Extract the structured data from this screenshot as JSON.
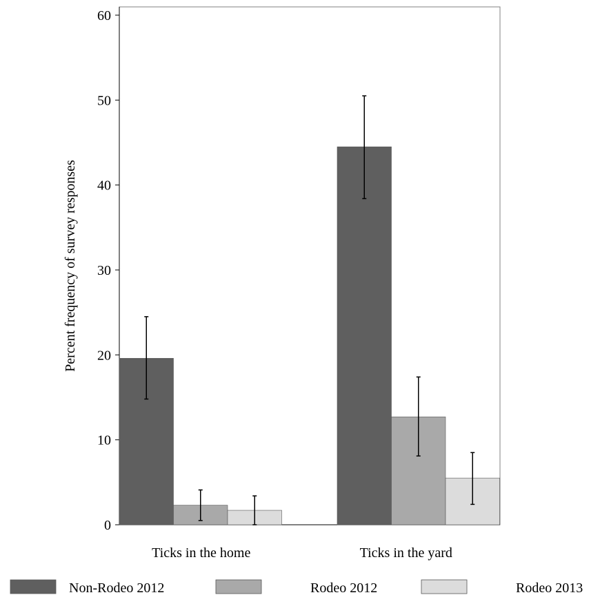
{
  "chart_data": {
    "type": "bar",
    "title": "",
    "xlabel": "",
    "ylabel": "Percent frequency of survey responses",
    "ylim": [
      0,
      60
    ],
    "yticks": [
      0,
      10,
      20,
      30,
      40,
      50,
      60
    ],
    "categories": [
      "Ticks in the home",
      "Ticks in the yard"
    ],
    "series": [
      {
        "name": "Non-Rodeo 2012",
        "color": "#5f5f5f",
        "values": [
          19.6,
          44.5
        ],
        "error_low": [
          14.8,
          38.4
        ],
        "error_high": [
          24.5,
          50.5
        ]
      },
      {
        "name": "Rodeo 2012",
        "color": "#a9a9a9",
        "values": [
          2.3,
          12.7
        ],
        "error_low": [
          0.5,
          8.1
        ],
        "error_high": [
          4.1,
          17.4
        ]
      },
      {
        "name": "Rodeo 2013",
        "color": "#dcdcdc",
        "values": [
          1.7,
          5.5
        ],
        "error_low": [
          0.0,
          2.4
        ],
        "error_high": [
          3.4,
          8.5
        ]
      }
    ],
    "grid": false,
    "legend_position": "bottom"
  }
}
